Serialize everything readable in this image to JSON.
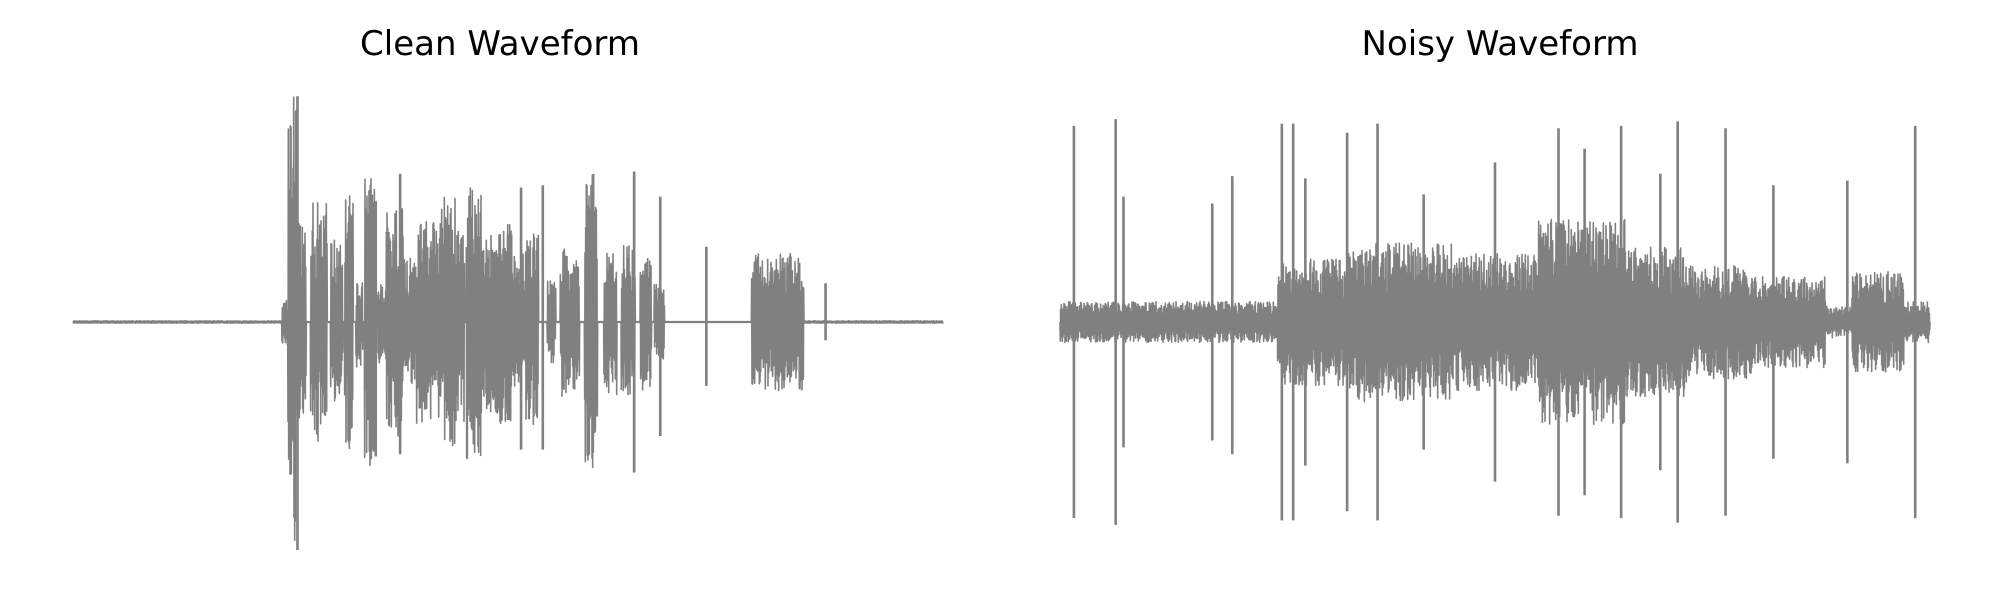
{
  "chart_data": [
    {
      "type": "line",
      "title": "Clean Waveform",
      "xlabel": "",
      "ylabel": "",
      "axis": "off",
      "grid": false,
      "color": "#808080",
      "ylim": [
        -1,
        1
      ],
      "segments": [
        {
          "start": 0.0,
          "end": 0.24,
          "amp": 0.005
        },
        {
          "start": 0.24,
          "end": 0.247,
          "amp": 0.12
        },
        {
          "start": 0.247,
          "end": 0.256,
          "amp": 1.0
        },
        {
          "start": 0.256,
          "end": 0.268,
          "amp": 0.45
        },
        {
          "start": 0.273,
          "end": 0.292,
          "amp": 0.53
        },
        {
          "start": 0.296,
          "end": 0.31,
          "amp": 0.36
        },
        {
          "start": 0.312,
          "end": 0.322,
          "amp": 0.58
        },
        {
          "start": 0.325,
          "end": 0.333,
          "amp": 0.2
        },
        {
          "start": 0.335,
          "end": 0.348,
          "amp": 0.65
        },
        {
          "start": 0.35,
          "end": 0.36,
          "amp": 0.18
        },
        {
          "start": 0.36,
          "end": 0.38,
          "amp": 0.5
        },
        {
          "start": 0.38,
          "end": 0.395,
          "amp": 0.28
        },
        {
          "start": 0.395,
          "end": 0.42,
          "amp": 0.45
        },
        {
          "start": 0.42,
          "end": 0.44,
          "amp": 0.55
        },
        {
          "start": 0.44,
          "end": 0.45,
          "amp": 0.45
        },
        {
          "start": 0.452,
          "end": 0.47,
          "amp": 0.6
        },
        {
          "start": 0.47,
          "end": 0.49,
          "amp": 0.4
        },
        {
          "start": 0.49,
          "end": 0.505,
          "amp": 0.45
        },
        {
          "start": 0.505,
          "end": 0.52,
          "amp": 0.3
        },
        {
          "start": 0.52,
          "end": 0.535,
          "amp": 0.45
        },
        {
          "start": 0.545,
          "end": 0.555,
          "amp": 0.18
        },
        {
          "start": 0.56,
          "end": 0.567,
          "amp": 0.35
        },
        {
          "start": 0.567,
          "end": 0.582,
          "amp": 0.3
        },
        {
          "start": 0.588,
          "end": 0.603,
          "amp": 0.65
        },
        {
          "start": 0.61,
          "end": 0.625,
          "amp": 0.32
        },
        {
          "start": 0.63,
          "end": 0.646,
          "amp": 0.34
        },
        {
          "start": 0.652,
          "end": 0.665,
          "amp": 0.3
        },
        {
          "start": 0.668,
          "end": 0.68,
          "amp": 0.17
        },
        {
          "start": 0.78,
          "end": 0.84,
          "amp": 0.3
        },
        {
          "start": 0.84,
          "end": 1.0,
          "amp": 0.005
        }
      ],
      "spikes": [
        {
          "x": 0.258,
          "y_max": 0.99,
          "y_min": -1.0
        },
        {
          "x": 0.348,
          "y_max": 0.53,
          "y_min": -0.59
        },
        {
          "x": 0.376,
          "y_max": 0.65,
          "y_min": -0.58
        },
        {
          "x": 0.5,
          "y_max": 0.38,
          "y_min": -0.43
        },
        {
          "x": 0.515,
          "y_max": 0.59,
          "y_min": -0.56
        },
        {
          "x": 0.54,
          "y_max": 0.6,
          "y_min": -0.56
        },
        {
          "x": 0.645,
          "y_max": 0.66,
          "y_min": -0.66
        },
        {
          "x": 0.675,
          "y_max": 0.55,
          "y_min": -0.5
        },
        {
          "x": 0.728,
          "y_max": 0.33,
          "y_min": -0.28
        },
        {
          "x": 0.865,
          "y_max": 0.17,
          "y_min": -0.08
        }
      ]
    },
    {
      "type": "line",
      "title": "Noisy Waveform",
      "xlabel": "",
      "ylabel": "",
      "axis": "off",
      "grid": false,
      "color": "#808080",
      "ylim": [
        -1,
        1
      ],
      "segments": [
        {
          "start": 0.0,
          "end": 0.25,
          "amp": 0.09
        },
        {
          "start": 0.25,
          "end": 0.33,
          "amp": 0.28
        },
        {
          "start": 0.33,
          "end": 0.45,
          "amp": 0.35
        },
        {
          "start": 0.45,
          "end": 0.55,
          "amp": 0.3
        },
        {
          "start": 0.55,
          "end": 0.65,
          "amp": 0.45
        },
        {
          "start": 0.65,
          "end": 0.72,
          "amp": 0.33
        },
        {
          "start": 0.72,
          "end": 0.8,
          "amp": 0.25
        },
        {
          "start": 0.8,
          "end": 0.88,
          "amp": 0.2
        },
        {
          "start": 0.88,
          "end": 0.91,
          "amp": 0.07
        },
        {
          "start": 0.91,
          "end": 0.97,
          "amp": 0.22
        },
        {
          "start": 0.97,
          "end": 1.0,
          "amp": 0.09
        }
      ],
      "spikes": [
        {
          "x": 0.016,
          "y_max": 0.86,
          "y_min": -0.86
        },
        {
          "x": 0.064,
          "y_max": 0.89,
          "y_min": -0.89
        },
        {
          "x": 0.073,
          "y_max": 0.55,
          "y_min": -0.55
        },
        {
          "x": 0.175,
          "y_max": 0.52,
          "y_min": -0.52
        },
        {
          "x": 0.198,
          "y_max": 0.64,
          "y_min": -0.58
        },
        {
          "x": 0.255,
          "y_max": 0.87,
          "y_min": -0.87
        },
        {
          "x": 0.268,
          "y_max": 0.87,
          "y_min": -0.87
        },
        {
          "x": 0.282,
          "y_max": 0.63,
          "y_min": -0.63
        },
        {
          "x": 0.33,
          "y_max": 0.83,
          "y_min": -0.83
        },
        {
          "x": 0.365,
          "y_max": 0.87,
          "y_min": -0.87
        },
        {
          "x": 0.418,
          "y_max": 0.56,
          "y_min": -0.56
        },
        {
          "x": 0.5,
          "y_max": 0.7,
          "y_min": -0.7
        },
        {
          "x": 0.573,
          "y_max": 0.85,
          "y_min": -0.85
        },
        {
          "x": 0.603,
          "y_max": 0.76,
          "y_min": -0.76
        },
        {
          "x": 0.645,
          "y_max": 0.86,
          "y_min": -0.86
        },
        {
          "x": 0.69,
          "y_max": 0.65,
          "y_min": -0.65
        },
        {
          "x": 0.71,
          "y_max": 0.88,
          "y_min": -0.88
        },
        {
          "x": 0.765,
          "y_max": 0.85,
          "y_min": -0.85
        },
        {
          "x": 0.82,
          "y_max": 0.6,
          "y_min": -0.6
        },
        {
          "x": 0.905,
          "y_max": 0.62,
          "y_min": -0.62
        },
        {
          "x": 0.983,
          "y_max": 0.86,
          "y_min": -0.86
        }
      ]
    }
  ]
}
